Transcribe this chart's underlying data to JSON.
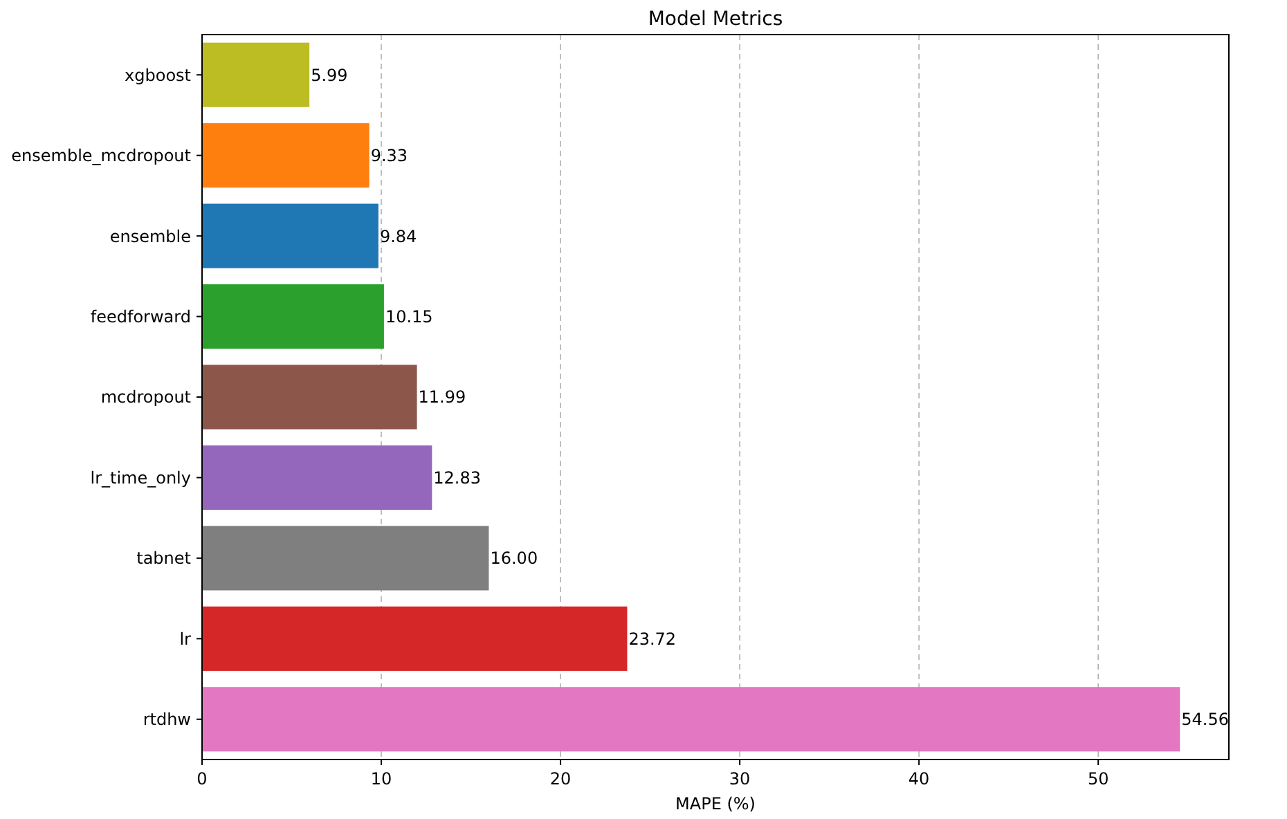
{
  "chart_data": {
    "type": "bar",
    "orientation": "horizontal",
    "title": "Model Metrics",
    "xlabel": "MAPE (%)",
    "categories": [
      "xgboost",
      "ensemble_mcdropout",
      "ensemble",
      "feedforward",
      "mcdropout",
      "lr_time_only",
      "tabnet",
      "lr",
      "rtdhw"
    ],
    "values": [
      5.99,
      9.33,
      9.84,
      10.15,
      11.99,
      12.83,
      16.0,
      23.72,
      54.56
    ],
    "colors": [
      "#bcbd22",
      "#ff7f0e",
      "#1f77b4",
      "#2ca02c",
      "#8c564b",
      "#9467bd",
      "#7f7f7f",
      "#d62728",
      "#e377c2"
    ],
    "value_labels": [
      "5.99",
      "9.33",
      "9.84",
      "10.15",
      "11.99",
      "12.83",
      "16.00",
      "23.72",
      "54.56"
    ],
    "xlim": [
      0,
      57.29
    ],
    "xticks": [
      0,
      10,
      20,
      30,
      40,
      50
    ],
    "grid": "x"
  }
}
